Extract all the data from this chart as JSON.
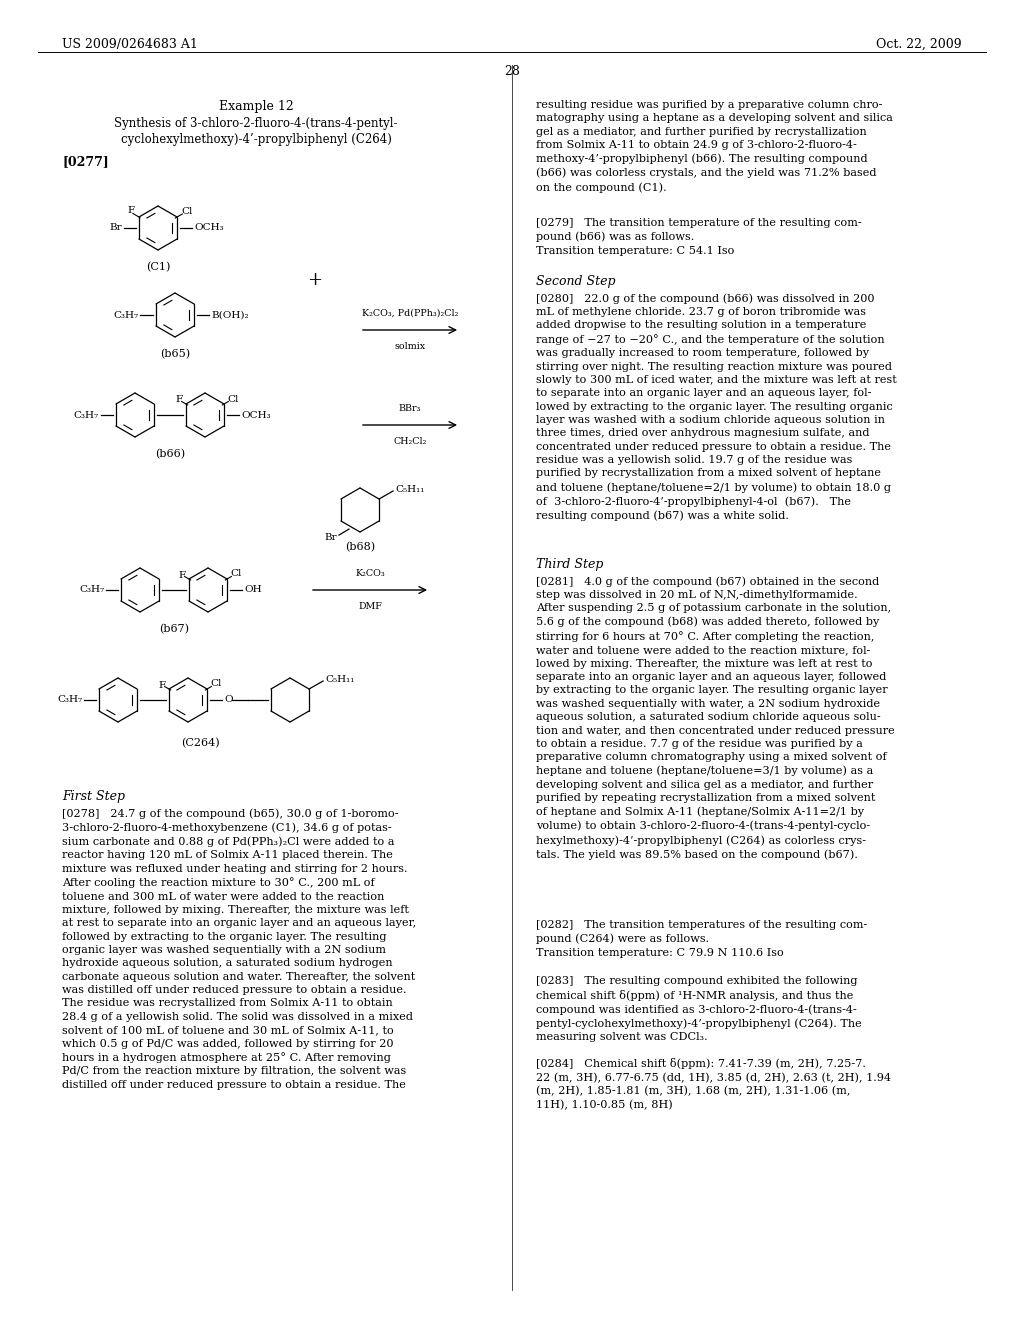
{
  "page_header_left": "US 2009/0264683 A1",
  "page_header_right": "Oct. 22, 2009",
  "page_number": "28",
  "background_color": "#ffffff",
  "text_color": "#000000",
  "example_title": "Example 12",
  "example_subtitle_line1": "Synthesis of 3-chloro-2-fluoro-4-(trans-4-pentyl-",
  "example_subtitle_line2": "cyclohexylmethoxy)-4’-propylbiphenyl (C264)",
  "paragraph_tag1": "[0277]",
  "reagent1_line1": "K₂CO₃, Pd(PPh₃)₂Cl₂",
  "reagent1_line2": "solmix",
  "reagent2_line1": "BBr₃",
  "reagent2_line2": "CH₂Cl₂",
  "reagent3_line1": "K₂CO₃",
  "reagent3_line2": "DMF",
  "first_step_title": "First Step",
  "second_step_title": "Second Step",
  "third_step_title": "Third Step"
}
